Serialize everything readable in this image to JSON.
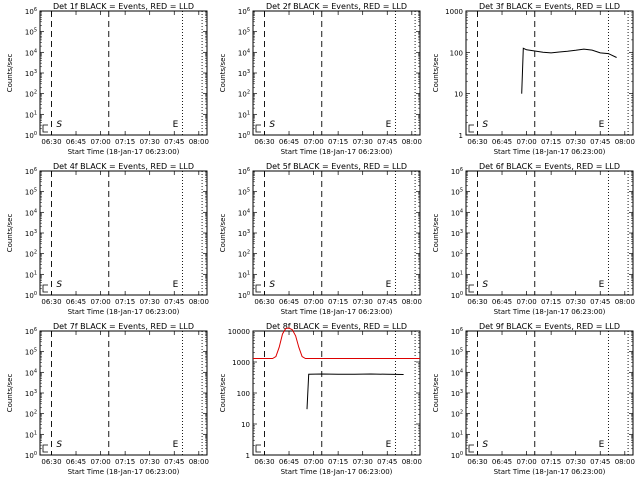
{
  "figure": {
    "x_tick_labels": [
      "06:30",
      "06:45",
      "07:00",
      "07:15",
      "07:30",
      "07:45",
      "08:00"
    ],
    "xlabel": "Start Time (18-Jan-17 06:23:00)",
    "ylabel": "Counts/sec",
    "colors": {
      "events": "#000000",
      "lld": "#dd0000"
    }
  },
  "chart_data": [
    {
      "title": "Det 1f BLACK = Events, RED = LLD",
      "type": "line",
      "scale": "log",
      "ylim": [
        1,
        1000000
      ],
      "y_ticks": [
        1,
        10,
        100,
        1000,
        10000,
        100000,
        1000000
      ],
      "y_tick_labels": [
        "10^0",
        "10^1",
        "10^2",
        "10^3",
        "10^4",
        "10^5",
        "10^6"
      ],
      "annotations": [
        "S",
        "E"
      ],
      "series": []
    },
    {
      "title": "Det 2f BLACK = Events, RED = LLD",
      "type": "line",
      "scale": "log",
      "ylim": [
        1,
        1000000
      ],
      "y_ticks": [
        1,
        10,
        100,
        1000,
        10000,
        100000,
        1000000
      ],
      "y_tick_labels": [
        "10^0",
        "10^1",
        "10^2",
        "10^3",
        "10^4",
        "10^5",
        "10^6"
      ],
      "annotations": [
        "S",
        "E"
      ],
      "series": []
    },
    {
      "title": "Det 3f BLACK = Events, RED = LLD",
      "type": "line",
      "scale": "log",
      "ylim": [
        1,
        1000
      ],
      "y_ticks": [
        1,
        10,
        100,
        1000
      ],
      "y_tick_labels": [
        "1",
        "10",
        "100",
        "1000"
      ],
      "annotations": [
        "S",
        "E"
      ],
      "series": [
        {
          "color": "#000000",
          "x": [
            "06:57:00",
            "06:58:00",
            "07:00:00",
            "07:05:00",
            "07:10:00",
            "07:15:00",
            "07:20:00",
            "07:25:00",
            "07:30:00",
            "07:35:00",
            "07:40:00",
            "07:45:00",
            "07:50:00",
            "07:55:00"
          ],
          "y": [
            10,
            125,
            115,
            108,
            100,
            97,
            102,
            106,
            112,
            120,
            113,
            97,
            93,
            75
          ]
        }
      ]
    },
    {
      "title": "Det 4f BLACK = Events, RED = LLD",
      "type": "line",
      "scale": "log",
      "ylim": [
        1,
        1000000
      ],
      "y_ticks": [
        1,
        10,
        100,
        1000,
        10000,
        100000,
        1000000
      ],
      "y_tick_labels": [
        "10^0",
        "10^1",
        "10^2",
        "10^3",
        "10^4",
        "10^5",
        "10^6"
      ],
      "annotations": [
        "S",
        "E"
      ],
      "series": []
    },
    {
      "title": "Det 5f BLACK = Events, RED = LLD",
      "type": "line",
      "scale": "log",
      "ylim": [
        1,
        1000000
      ],
      "y_ticks": [
        1,
        10,
        100,
        1000,
        10000,
        100000,
        1000000
      ],
      "y_tick_labels": [
        "10^0",
        "10^1",
        "10^2",
        "10^3",
        "10^4",
        "10^5",
        "10^6"
      ],
      "annotations": [
        "S",
        "E"
      ],
      "series": []
    },
    {
      "title": "Det 6f BLACK = Events, RED = LLD",
      "type": "line",
      "scale": "log",
      "ylim": [
        1,
        1000000
      ],
      "y_ticks": [
        1,
        10,
        100,
        1000,
        10000,
        100000,
        1000000
      ],
      "y_tick_labels": [
        "10^0",
        "10^1",
        "10^2",
        "10^3",
        "10^4",
        "10^5",
        "10^6"
      ],
      "annotations": [
        "S",
        "E"
      ],
      "series": []
    },
    {
      "title": "Det 7f BLACK = Events, RED = LLD",
      "type": "line",
      "scale": "log",
      "ylim": [
        1,
        1000000
      ],
      "y_ticks": [
        1,
        10,
        100,
        1000,
        10000,
        100000,
        1000000
      ],
      "y_tick_labels": [
        "10^0",
        "10^1",
        "10^2",
        "10^3",
        "10^4",
        "10^5",
        "10^6"
      ],
      "annotations": [
        "S",
        "E"
      ],
      "series": []
    },
    {
      "title": "Det 8f BLACK = Events, RED = LLD",
      "type": "line",
      "scale": "log",
      "ylim": [
        1,
        10000
      ],
      "y_ticks": [
        1,
        10,
        100,
        1000,
        10000
      ],
      "y_tick_labels": [
        "1",
        "10",
        "100",
        "1000",
        "10000"
      ],
      "annotations": [
        "E"
      ],
      "series": [
        {
          "color": "#dd0000",
          "x": [
            "06:23:00",
            "06:35:00",
            "06:37:00",
            "06:39:00",
            "06:41:00",
            "06:43:00",
            "06:45:00",
            "06:47:00",
            "06:49:00",
            "06:51:00",
            "06:53:00",
            "06:55:00",
            "07:10:00",
            "07:30:00",
            "07:50:00",
            "08:05:00"
          ],
          "y": [
            1300,
            1300,
            1500,
            3000,
            8000,
            12000,
            12500,
            11000,
            7000,
            3000,
            1500,
            1300,
            1300,
            1300,
            1300,
            1300
          ]
        },
        {
          "color": "#000000",
          "x": [
            "06:56:00",
            "06:57:00",
            "07:05:00",
            "07:15:00",
            "07:25:00",
            "07:35:00",
            "07:45:00",
            "07:55:00"
          ],
          "y": [
            30,
            400,
            410,
            405,
            400,
            410,
            400,
            395
          ]
        }
      ]
    },
    {
      "title": "Det 9f BLACK = Events, RED = LLD",
      "type": "line",
      "scale": "log",
      "ylim": [
        1,
        1000000
      ],
      "y_ticks": [
        1,
        10,
        100,
        1000,
        10000,
        100000,
        1000000
      ],
      "y_tick_labels": [
        "10^0",
        "10^1",
        "10^2",
        "10^3",
        "10^4",
        "10^5",
        "10^6"
      ],
      "annotations": [
        "S",
        "E"
      ],
      "series": []
    }
  ]
}
